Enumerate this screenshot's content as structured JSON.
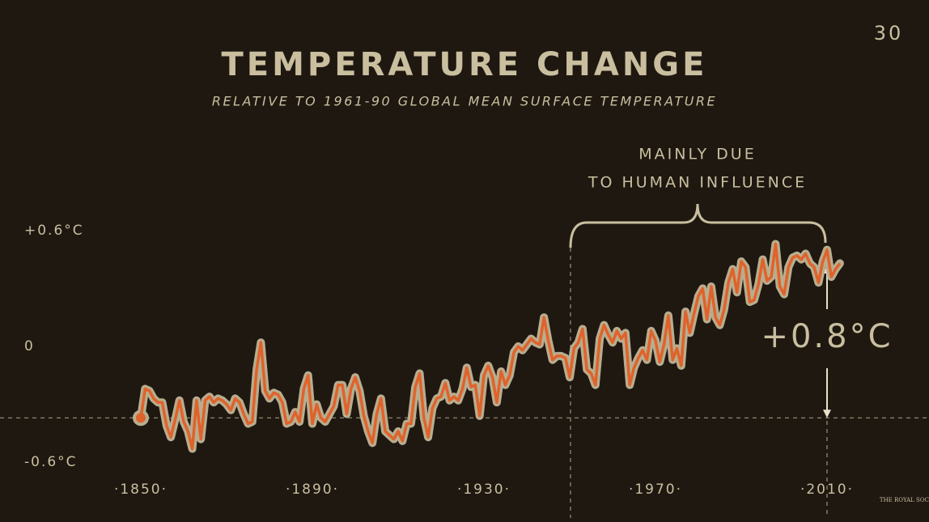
{
  "chart_data": {
    "type": "line",
    "title": "TEMPERATURE CHANGE",
    "subtitle": "RELATIVE TO 1961-90 GLOBAL MEAN SURFACE TEMPERATURE",
    "annotation_lines": [
      "MAINLY DUE",
      "TO HUMAN INFLUENCE"
    ],
    "change_label": "+0.8°C",
    "slide_number": "30",
    "logo": "THE ROYAL SOCIETY",
    "x": [
      1850,
      1851,
      1852,
      1853,
      1854,
      1855,
      1856,
      1857,
      1858,
      1859,
      1860,
      1861,
      1862,
      1863,
      1864,
      1865,
      1866,
      1867,
      1868,
      1869,
      1870,
      1871,
      1872,
      1873,
      1874,
      1875,
      1876,
      1877,
      1878,
      1879,
      1880,
      1881,
      1882,
      1883,
      1884,
      1885,
      1886,
      1887,
      1888,
      1889,
      1890,
      1891,
      1892,
      1893,
      1894,
      1895,
      1896,
      1897,
      1898,
      1899,
      1900,
      1901,
      1902,
      1903,
      1904,
      1905,
      1906,
      1907,
      1908,
      1909,
      1910,
      1911,
      1912,
      1913,
      1914,
      1915,
      1916,
      1917,
      1918,
      1919,
      1920,
      1921,
      1922,
      1923,
      1924,
      1925,
      1926,
      1927,
      1928,
      1929,
      1930,
      1931,
      1932,
      1933,
      1934,
      1935,
      1936,
      1937,
      1938,
      1939,
      1940,
      1941,
      1942,
      1943,
      1944,
      1945,
      1946,
      1947,
      1948,
      1949,
      1950,
      1951,
      1952,
      1953,
      1954,
      1955,
      1956,
      1957,
      1958,
      1959,
      1960,
      1961,
      1962,
      1963,
      1964,
      1965,
      1966,
      1967,
      1968,
      1969,
      1970,
      1971,
      1972,
      1973,
      1974,
      1975,
      1976,
      1977,
      1978,
      1979,
      1980,
      1981,
      1982,
      1983,
      1984,
      1985,
      1986,
      1987,
      1988,
      1989,
      1990,
      1991,
      1992,
      1993,
      1994,
      1995,
      1996,
      1997,
      1998,
      1999,
      2000,
      2001,
      2002,
      2003,
      2004,
      2005,
      2006,
      2007,
      2008,
      2009,
      2010,
      2011,
      2012,
      2013
    ],
    "series": [
      {
        "color": "#e0622a",
        "outline": "#b8ad8f",
        "values": [
          -0.37,
          -0.22,
          -0.23,
          -0.27,
          -0.29,
          -0.29,
          -0.41,
          -0.47,
          -0.38,
          -0.28,
          -0.39,
          -0.44,
          -0.53,
          -0.28,
          -0.48,
          -0.28,
          -0.26,
          -0.29,
          -0.27,
          -0.28,
          -0.3,
          -0.33,
          -0.27,
          -0.29,
          -0.35,
          -0.4,
          -0.39,
          -0.12,
          0.02,
          -0.23,
          -0.27,
          -0.24,
          -0.25,
          -0.29,
          -0.4,
          -0.39,
          -0.34,
          -0.39,
          -0.22,
          -0.15,
          -0.4,
          -0.3,
          -0.37,
          -0.39,
          -0.35,
          -0.31,
          -0.2,
          -0.2,
          -0.35,
          -0.22,
          -0.16,
          -0.23,
          -0.36,
          -0.44,
          -0.5,
          -0.35,
          -0.27,
          -0.44,
          -0.46,
          -0.48,
          -0.44,
          -0.49,
          -0.4,
          -0.4,
          -0.21,
          -0.14,
          -0.37,
          -0.47,
          -0.32,
          -0.27,
          -0.26,
          -0.19,
          -0.28,
          -0.26,
          -0.28,
          -0.22,
          -0.11,
          -0.21,
          -0.2,
          -0.36,
          -0.15,
          -0.1,
          -0.16,
          -0.29,
          -0.13,
          -0.2,
          -0.15,
          -0.03,
          0,
          -0.02,
          0.01,
          0.04,
          0.02,
          0.01,
          0.15,
          0.03,
          -0.07,
          -0.05,
          -0.05,
          -0.06,
          -0.16,
          -0.01,
          0.02,
          0.09,
          -0.12,
          -0.14,
          -0.2,
          0.04,
          0.11,
          0.06,
          0.02,
          0.08,
          0.04,
          0.07,
          -0.2,
          -0.11,
          -0.06,
          -0.02,
          -0.07,
          0.08,
          0.03,
          -0.08,
          0.01,
          0.16,
          -0.07,
          -0.01,
          -0.1,
          0.18,
          0.07,
          0.17,
          0.26,
          0.3,
          0.14,
          0.31,
          0.15,
          0.11,
          0.19,
          0.33,
          0.4,
          0.28,
          0.44,
          0.41,
          0.23,
          0.24,
          0.32,
          0.45,
          0.34,
          0.36,
          0.53,
          0.31,
          0.27,
          0.41,
          0.46,
          0.47,
          0.45,
          0.48,
          0.43,
          0.41,
          0.33,
          0.44,
          0.5,
          0.36,
          0.4,
          0.43
        ]
      }
    ],
    "xlim": [
      1850,
      2013
    ],
    "ylim": [
      -0.75,
      0.75
    ],
    "xticks": [
      {
        "value": 1850,
        "label": "·1850·"
      },
      {
        "value": 1890,
        "label": "·1890·"
      },
      {
        "value": 1930,
        "label": "·1930·"
      },
      {
        "value": 1970,
        "label": "·1970·"
      },
      {
        "value": 2010,
        "label": "·2010·"
      }
    ],
    "yticks": [
      {
        "value": 0.6,
        "label": "+0.6°C"
      },
      0,
      {
        "value": -0.6,
        "label": "-0.6°C"
      }
    ]
  }
}
